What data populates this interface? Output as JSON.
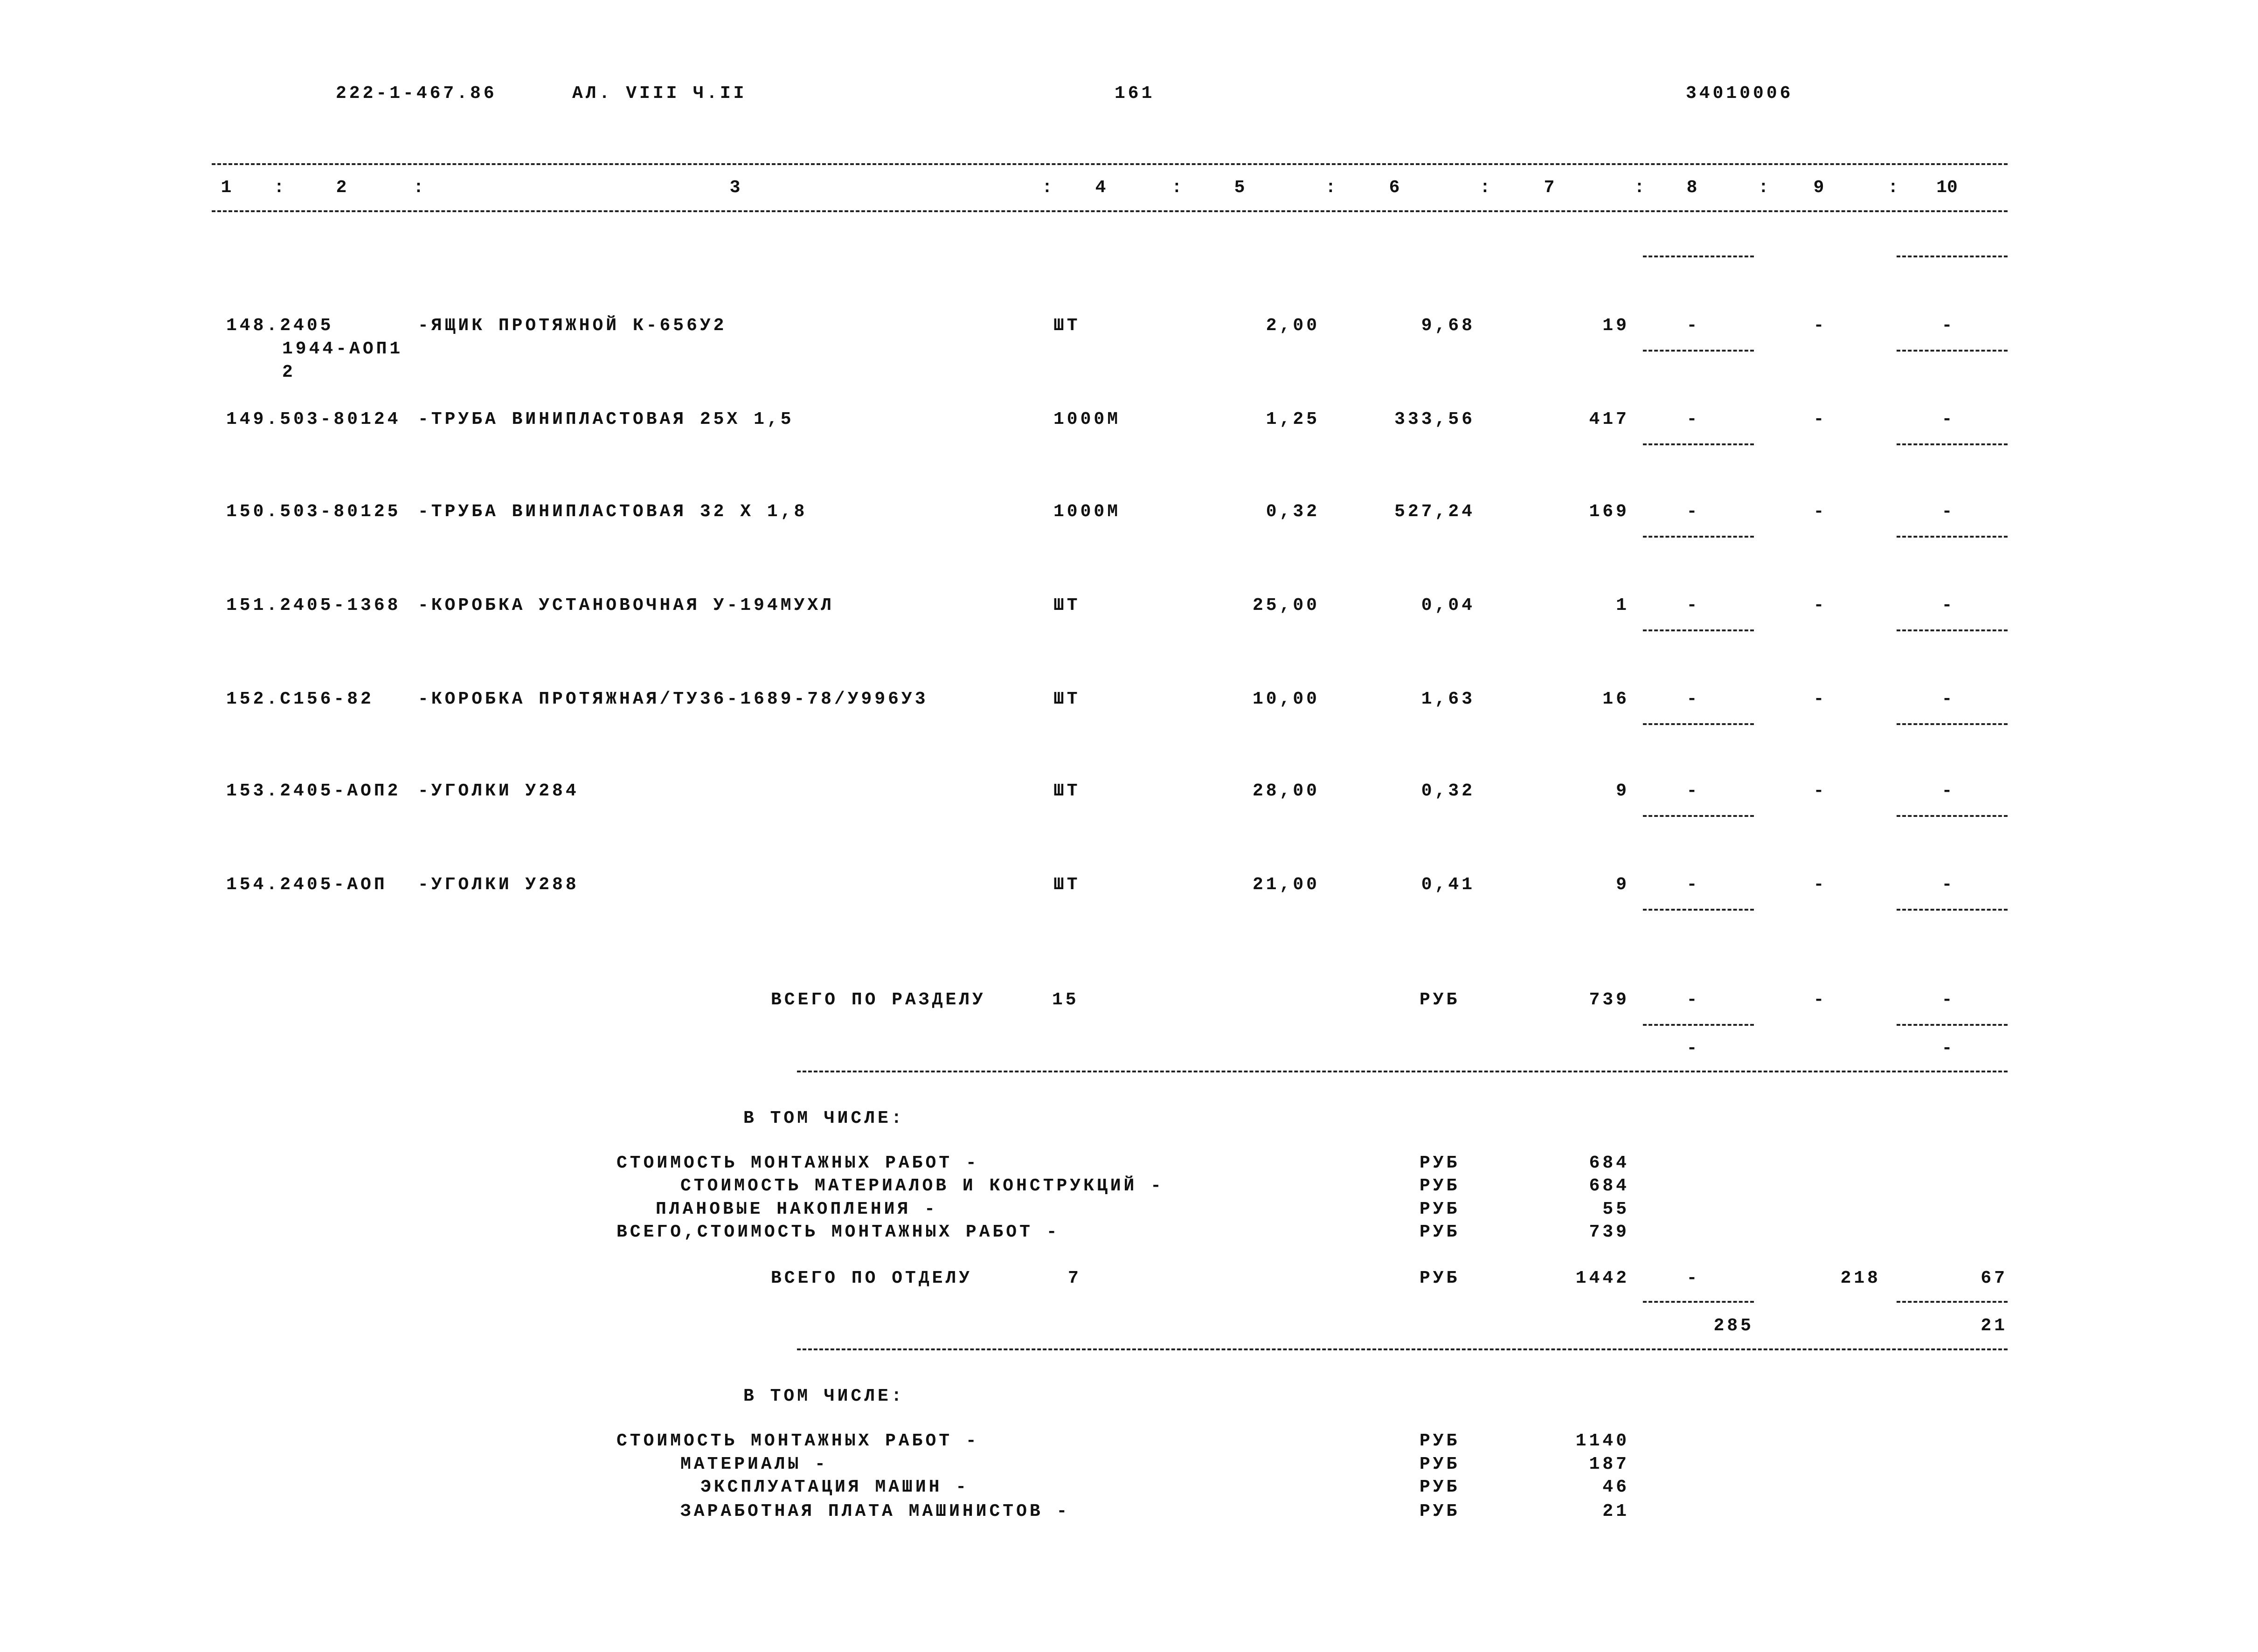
{
  "header": {
    "doc_number": "222-1-467.86",
    "album": "АЛ. VIII Ч.II",
    "page": "161",
    "code": "34010006"
  },
  "column_headers": [
    "1",
    "2",
    "3",
    "4",
    "5",
    "6",
    "7",
    "8",
    "9",
    "10"
  ],
  "rows": [
    {
      "code": "148.2405",
      "code_cont": [
        "1944-АОП1",
        "2"
      ],
      "name": "-ЯЩИК ПРОТЯЖНОЙ К-656У2",
      "unit": "ШТ",
      "qty": "2,00",
      "price": "9,68",
      "total": "19",
      "c8": "-",
      "c9": "-",
      "c10": "-"
    },
    {
      "code": "149.503-80124",
      "code_cont": [],
      "name": "-ТРУБА ВИНИПЛАСТОВАЯ 25Х 1,5",
      "unit": "1000М",
      "qty": "1,25",
      "price": "333,56",
      "total": "417",
      "c8": "-",
      "c9": "-",
      "c10": "-"
    },
    {
      "code": "150.503-80125",
      "code_cont": [],
      "name": "-ТРУБА ВИНИПЛАСТОВАЯ 32 Х 1,8",
      "unit": "1000М",
      "qty": "0,32",
      "price": "527,24",
      "total": "169",
      "c8": "-",
      "c9": "-",
      "c10": "-"
    },
    {
      "code": "151.2405-1368",
      "code_cont": [],
      "name": "-КОРОБКА УСТАНОВОЧНАЯ У-194МУХЛ",
      "unit": "ШТ",
      "qty": "25,00",
      "price": "0,04",
      "total": "1",
      "c8": "-",
      "c9": "-",
      "c10": "-"
    },
    {
      "code": "152.С156-82",
      "code_cont": [],
      "name": "-КОРОБКА ПРОТЯЖНАЯ/ТУ36-1689-78/У996У3",
      "unit": "ШТ",
      "qty": "10,00",
      "price": "1,63",
      "total": "16",
      "c8": "-",
      "c9": "-",
      "c10": "-"
    },
    {
      "code": "153.2405-АОП2",
      "code_cont": [],
      "name": "-УГОЛКИ У284",
      "unit": "ШТ",
      "qty": "28,00",
      "price": "0,32",
      "total": "9",
      "c8": "-",
      "c9": "-",
      "c10": "-"
    },
    {
      "code": "154.2405-АОП",
      "code_cont": [],
      "name": "-УГОЛКИ У288",
      "unit": "ШТ",
      "qty": "21,00",
      "price": "0,41",
      "total": "9",
      "c8": "-",
      "c9": "-",
      "c10": "-"
    }
  ],
  "section_total": {
    "label": "ВСЕГО ПО РАЗДЕЛУ",
    "number": "15",
    "unit": "РУБ",
    "total": "739",
    "c8": "-",
    "c9": "-",
    "c10": "-",
    "c8_sub": "-",
    "c10_sub": "-"
  },
  "section_breakdown": {
    "heading": "В ТОМ ЧИСЛЕ:",
    "items": [
      {
        "label": "СТОИМОСТЬ МОНТАЖНЫХ РАБОТ -",
        "unit": "РУБ",
        "value": "684"
      },
      {
        "label": "СТОИМОСТЬ МАТЕРИАЛОВ И КОНСТРУКЦИЙ -",
        "unit": "РУБ",
        "value": "684"
      },
      {
        "label": "ПЛАНОВЫЕ НАКОПЛЕНИЯ -",
        "unit": "РУБ",
        "value": "55"
      },
      {
        "label": "ВСЕГО,СТОИМОСТЬ МОНТАЖНЫХ РАБОТ -",
        "unit": "РУБ",
        "value": "739"
      }
    ]
  },
  "department_total": {
    "label": "ВСЕГО ПО ОТДЕЛУ",
    "number": "7",
    "unit": "РУБ",
    "total": "1442",
    "c8": "-",
    "c9": "218",
    "c10": "67",
    "c8_sub": "285",
    "c10_sub": "21"
  },
  "department_breakdown": {
    "heading": "В ТОМ ЧИСЛЕ:",
    "items": [
      {
        "label": "СТОИМОСТЬ МОНТАЖНЫХ РАБОТ -",
        "unit": "РУБ",
        "value": "1140"
      },
      {
        "label": "МАТЕРИАЛЫ -",
        "unit": "РУБ",
        "value": "187"
      },
      {
        "label": "ЭКСПЛУАТАЦИЯ МАШИН -",
        "unit": "РУБ",
        "value": "46"
      },
      {
        "label": "ЗАРАБОТНАЯ ПЛАТА МАШИНИСТОВ -",
        "unit": "РУБ",
        "value": "21"
      }
    ]
  }
}
